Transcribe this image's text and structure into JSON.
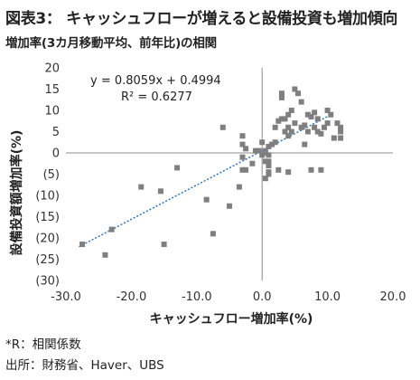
{
  "header": {
    "title": "図表3： キャッシュフローが増えると設備投資も増加傾向",
    "subtitle": "増加率(3カ月移動平均、前年比)の相関"
  },
  "footer": {
    "note": "*R：相関係数",
    "source": "出所：財務省、Haver、UBS"
  },
  "colors": {
    "points": "#7f7f7f",
    "trendline": "#2e75b6",
    "axis": "#8c8c8c"
  },
  "chart_data": {
    "type": "scatter",
    "xlabel": "キャッシュフロー増加率(%)",
    "ylabel": "設備投資額増加率(%)",
    "xlim": [
      -30,
      20
    ],
    "ylim": [
      -30,
      20
    ],
    "x_ticks": [
      -30,
      -20,
      -10,
      0,
      10,
      20
    ],
    "x_tick_labels": [
      "-30.0",
      "-20.0",
      "-10.0",
      "0.0",
      "10.0",
      "20.0"
    ],
    "y_ticks": [
      20,
      15,
      10,
      5,
      0,
      -5,
      -10,
      -15,
      -20,
      -25,
      -30
    ],
    "y_tick_labels": [
      "20",
      "15",
      "10",
      "5",
      "0",
      "(5)",
      "(10)",
      "(15)",
      "(20)",
      "(25)",
      "(30)"
    ],
    "trendline": {
      "slope": 0.8059,
      "intercept": 0.4994,
      "x_range": [
        -28,
        10
      ],
      "equation": "y = 0.8059x + 0.4994",
      "r_squared": "R² = 0.6277"
    },
    "points": [
      [
        -27.5,
        -21.5
      ],
      [
        -24,
        -24
      ],
      [
        -23,
        -18
      ],
      [
        -18.5,
        -8
      ],
      [
        -15.5,
        -9
      ],
      [
        -15,
        -21.5
      ],
      [
        -13,
        -3.5
      ],
      [
        -8.5,
        -11
      ],
      [
        -7.5,
        -19
      ],
      [
        -6,
        6
      ],
      [
        -5,
        -12.5
      ],
      [
        -3.5,
        -8
      ],
      [
        -3,
        4
      ],
      [
        -3,
        2
      ],
      [
        -3,
        -4
      ],
      [
        -3,
        -1
      ],
      [
        -2.5,
        -4
      ],
      [
        -2.5,
        1
      ],
      [
        -1.5,
        -2.5
      ],
      [
        -1,
        0.5
      ],
      [
        -0.5,
        0.5
      ],
      [
        0,
        2.5
      ],
      [
        0,
        -0.5
      ],
      [
        0.5,
        -2
      ],
      [
        0.5,
        0.5
      ],
      [
        0.5,
        0
      ],
      [
        1,
        1.5
      ],
      [
        1,
        -2
      ],
      [
        1,
        -3
      ],
      [
        1,
        -0.5
      ],
      [
        0.5,
        -6
      ],
      [
        1,
        -4.5
      ],
      [
        1,
        -5
      ],
      [
        1.5,
        2
      ],
      [
        2,
        6
      ],
      [
        2,
        2.5
      ],
      [
        2.5,
        7.5
      ],
      [
        2.5,
        -4
      ],
      [
        3,
        14
      ],
      [
        3,
        13
      ],
      [
        3,
        8
      ],
      [
        3.5,
        8
      ],
      [
        3.5,
        5
      ],
      [
        4,
        9
      ],
      [
        4,
        4
      ],
      [
        4,
        6
      ],
      [
        4,
        -4.5
      ],
      [
        4.5,
        5
      ],
      [
        4.5,
        10
      ],
      [
        5,
        7
      ],
      [
        5,
        15
      ],
      [
        5.5,
        14
      ],
      [
        6,
        12
      ],
      [
        6,
        6
      ],
      [
        6.5,
        6.5
      ],
      [
        6.5,
        2
      ],
      [
        7,
        9
      ],
      [
        7,
        5
      ],
      [
        7.5,
        8.5
      ],
      [
        7.5,
        -4
      ],
      [
        8,
        9.5
      ],
      [
        8,
        6
      ],
      [
        8.5,
        5
      ],
      [
        8.5,
        8
      ],
      [
        9,
        4.5
      ],
      [
        9,
        -4
      ],
      [
        9.5,
        6
      ],
      [
        10,
        10
      ],
      [
        10,
        7
      ],
      [
        10.5,
        9
      ],
      [
        11,
        3.5
      ],
      [
        11.5,
        7
      ],
      [
        12,
        6
      ],
      [
        12,
        5
      ],
      [
        12,
        3.5
      ]
    ]
  }
}
